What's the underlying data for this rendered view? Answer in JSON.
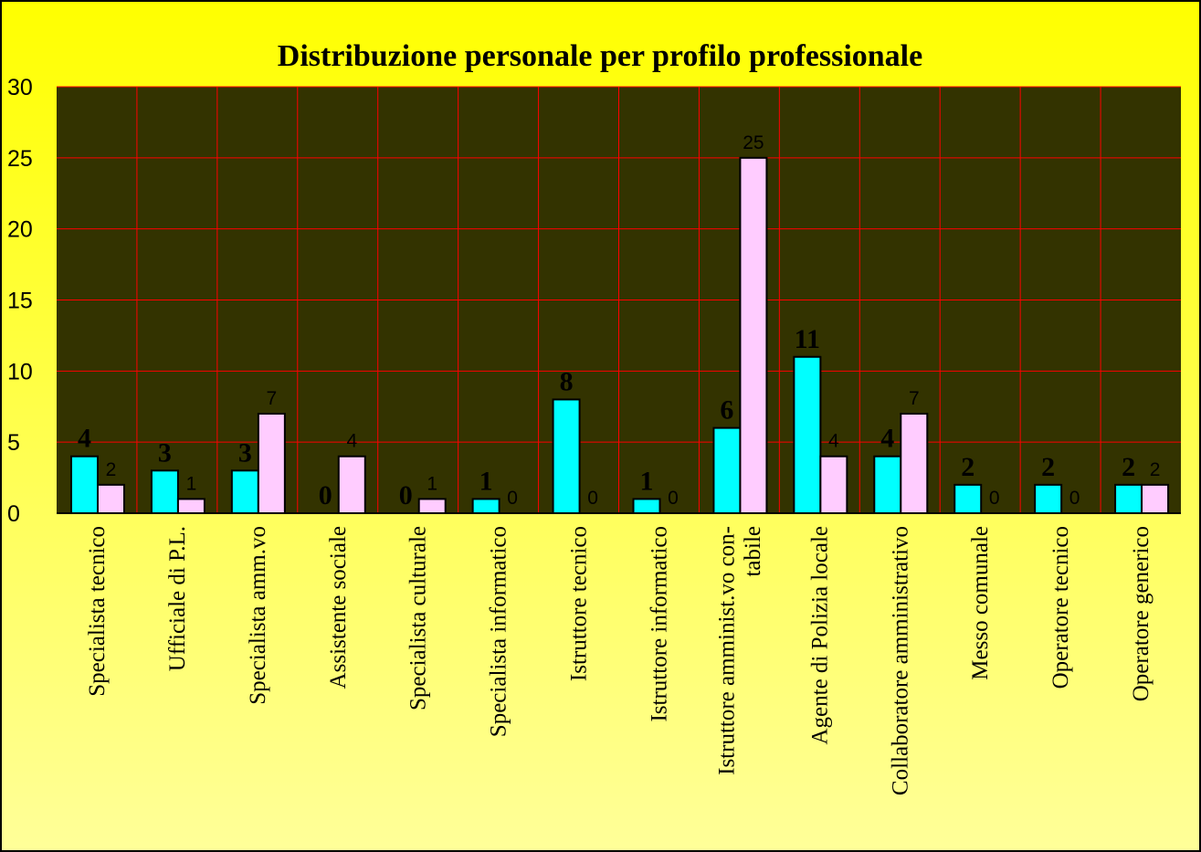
{
  "chart_data": {
    "type": "bar",
    "title": "Distribuzione personale per profilo professionale",
    "categories": [
      "Specialista tecnico",
      "Ufficiale di P.L.",
      "Specialista amm.vo",
      "Assistente sociale",
      "Specialista culturale",
      "Specialista informatico",
      "Istruttore tecnico",
      "Istruttore informatico",
      "Istruttore amminist.vo con-\ntabile",
      "Agente di Polizia locale",
      "Collaboratore amministrativo",
      "Messo comunale",
      "Operatore tecnico",
      "Operatore generico"
    ],
    "series": [
      {
        "color": "#00ffff",
        "values": [
          4,
          3,
          3,
          0,
          0,
          1,
          8,
          1,
          6,
          11,
          4,
          2,
          2,
          2
        ]
      },
      {
        "color": "#ffccff",
        "values": [
          2,
          1,
          7,
          4,
          1,
          0,
          0,
          0,
          25,
          4,
          7,
          0,
          0,
          2
        ]
      }
    ],
    "ylim": [
      0,
      30
    ],
    "yticks": [
      0,
      5,
      10,
      15,
      20,
      25,
      30
    ],
    "grid": true
  }
}
